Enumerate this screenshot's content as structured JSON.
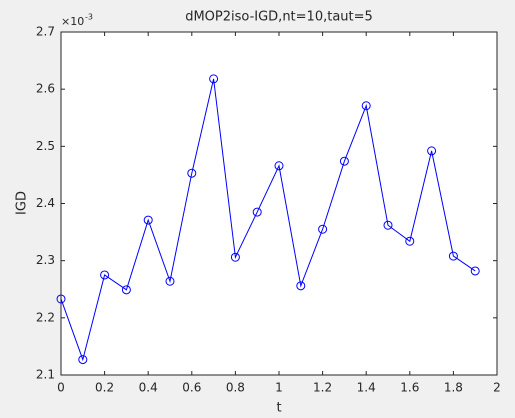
{
  "chart_data": {
    "type": "line",
    "title": "dMOP2iso-IGD,nt=10,taut=5",
    "x_label": "t",
    "y_label": "IGD",
    "y_multiplier": {
      "base": "×10",
      "power": "-3"
    },
    "x": [
      0,
      0.1,
      0.2,
      0.3,
      0.4,
      0.5,
      0.6,
      0.7,
      0.8,
      0.9,
      1,
      1.1,
      1.2,
      1.3,
      1.4,
      1.5,
      1.6,
      1.7,
      1.8,
      1.9
    ],
    "series": [
      {
        "color": "#0000ff",
        "marker": "circle",
        "values": [
          2.233,
          2.127,
          2.275,
          2.249,
          2.371,
          2.264,
          2.453,
          2.618,
          2.306,
          2.385,
          2.466,
          2.256,
          2.355,
          2.474,
          2.571,
          2.362,
          2.334,
          2.492,
          2.308,
          2.282
        ]
      }
    ],
    "xlim": [
      0,
      2
    ],
    "xticks": [
      0,
      0.2,
      0.4,
      0.6,
      0.8,
      1,
      1.2,
      1.4,
      1.6,
      1.8,
      2
    ],
    "ylim": [
      2.1,
      2.7
    ],
    "yticks": [
      2.1,
      2.2,
      2.3,
      2.4,
      2.5,
      2.6,
      2.7
    ],
    "grid": false
  }
}
